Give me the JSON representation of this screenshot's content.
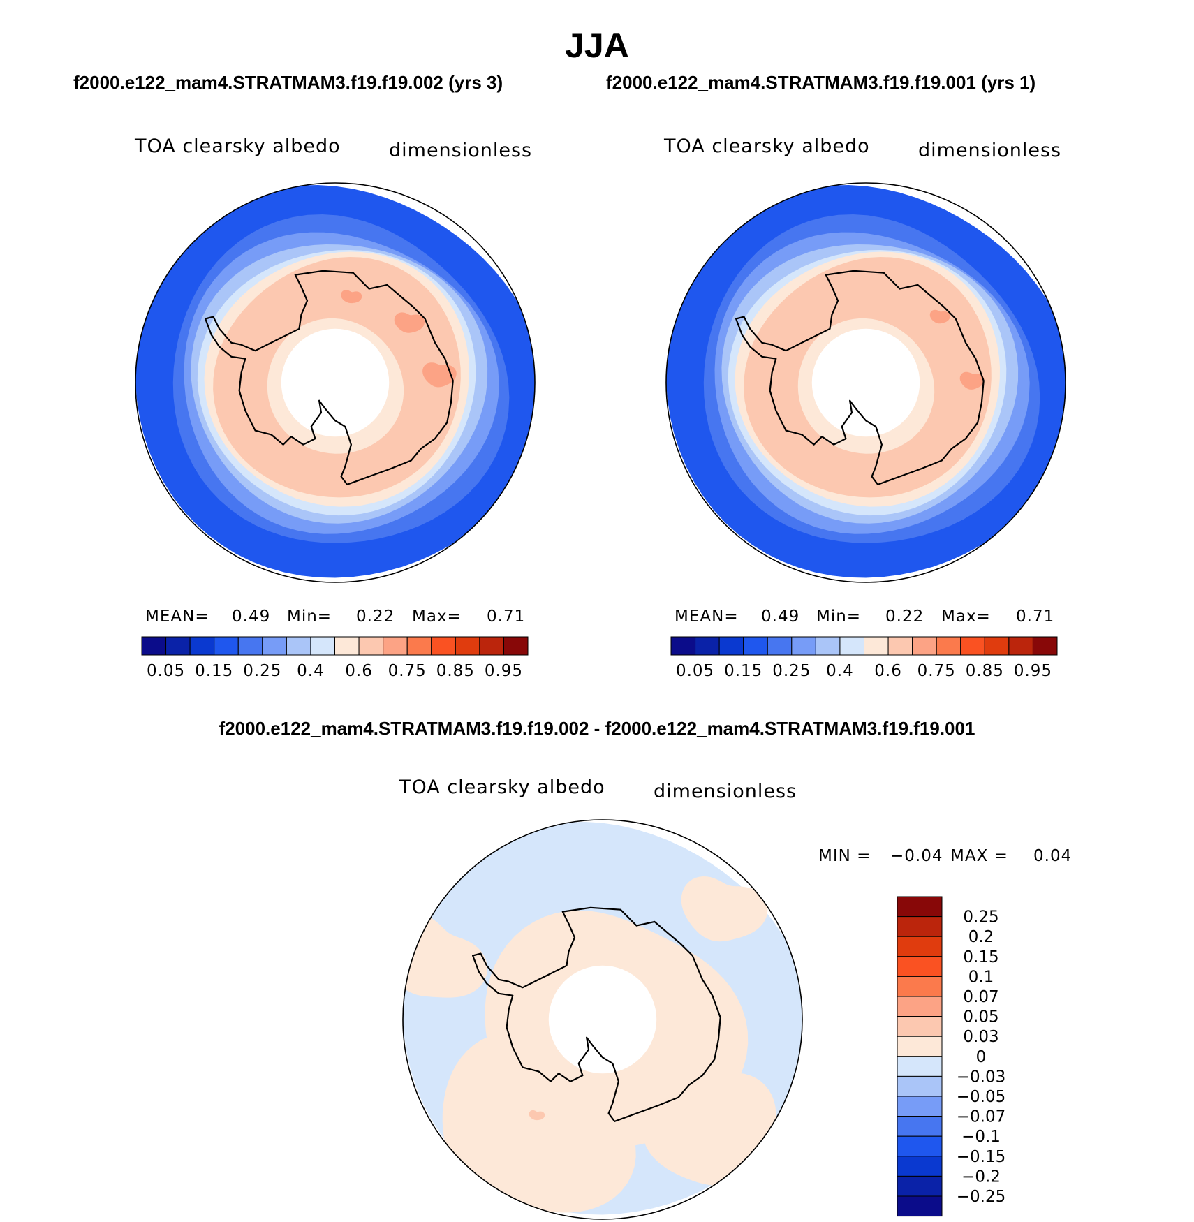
{
  "title": "JJA",
  "subtitles": {
    "left": "f2000.e122_mam4.STRATMAM3.f19.f19.002 (yrs 3)",
    "right": "f2000.e122_mam4.STRATMAM3.f19.f19.001 (yrs 1)"
  },
  "diff_title": "f2000.e122_mam4.STRATMAM3.f19.f19.002 - f2000.e122_mam4.STRATMAM3.f19.f19.001",
  "colors": {
    "main_scale": [
      "#0b0c8a",
      "#0a22a8",
      "#0a39d0",
      "#1f57ee",
      "#4776f0",
      "#779cf7",
      "#aac5f8",
      "#d5e6fb",
      "#fde8d8",
      "#fcc8b0",
      "#fca385",
      "#fb7a4c",
      "#fa5222",
      "#e03c0e",
      "#bb250c",
      "#880808"
    ],
    "diff_scale": [
      "#880808",
      "#bb250c",
      "#e03c0e",
      "#fa5222",
      "#fb7a4c",
      "#fca385",
      "#fcc8b0",
      "#fde8d8",
      "#d5e6fb",
      "#aac5f8",
      "#779cf7",
      "#4776f0",
      "#1f57ee",
      "#0a39d0",
      "#0a22a8",
      "#0b0c8a"
    ],
    "coast": "#000000"
  },
  "chart_data": [
    {
      "type": "heatmap",
      "title": "f2000.e122_mam4.STRATMAM3.f19.f19.002 (yrs 3)",
      "variable": "TOA clearsky albedo",
      "units": "dimensionless",
      "projection": "south-polar stereographic",
      "stats": {
        "mean_label": "MEAN=",
        "mean": "0.49",
        "min_label": "Min=",
        "min": "0.22",
        "max_label": "Max=",
        "max": "0.71"
      },
      "colorbar": {
        "orientation": "horizontal",
        "tick_labels": [
          "0.05",
          "0.15",
          "0.25",
          "0.4",
          "0.6",
          "0.75",
          "0.85",
          "0.95"
        ]
      }
    },
    {
      "type": "heatmap",
      "title": "f2000.e122_mam4.STRATMAM3.f19.f19.001 (yrs 1)",
      "variable": "TOA clearsky albedo",
      "units": "dimensionless",
      "projection": "south-polar stereographic",
      "stats": {
        "mean_label": "MEAN=",
        "mean": "0.49",
        "min_label": "Min=",
        "min": "0.22",
        "max_label": "Max=",
        "max": "0.71"
      },
      "colorbar": {
        "orientation": "horizontal",
        "tick_labels": [
          "0.05",
          "0.15",
          "0.25",
          "0.4",
          "0.6",
          "0.75",
          "0.85",
          "0.95"
        ]
      }
    },
    {
      "type": "heatmap",
      "title": "f2000.e122_mam4.STRATMAM3.f19.f19.002 - f2000.e122_mam4.STRATMAM3.f19.f19.001",
      "variable": "TOA clearsky albedo",
      "units": "dimensionless",
      "projection": "south-polar stereographic",
      "stats": {
        "min_label": "MIN =",
        "min": "−0.04",
        "max_label": "MAX =",
        "max": "0.04"
      },
      "colorbar": {
        "orientation": "vertical",
        "tick_labels": [
          "0.25",
          "0.2",
          "0.15",
          "0.1",
          "0.07",
          "0.05",
          "0.03",
          "0",
          "−0.03",
          "−0.05",
          "−0.07",
          "−0.1",
          "−0.15",
          "−0.2",
          "−0.25"
        ]
      }
    }
  ]
}
